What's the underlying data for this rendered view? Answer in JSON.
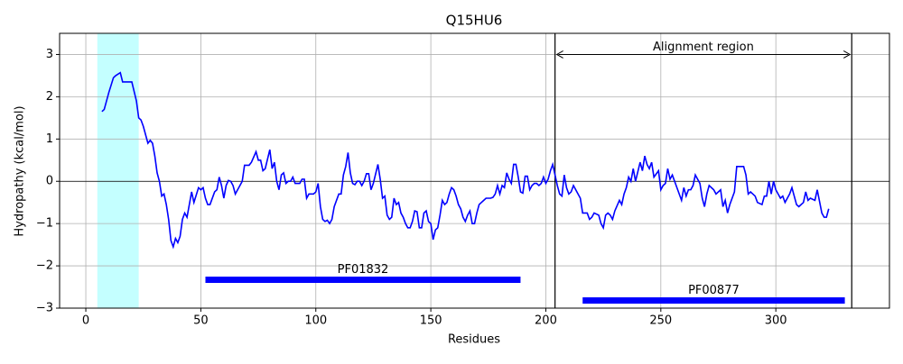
{
  "chart_data": {
    "type": "line",
    "title": "Q15HU6",
    "xlabel": "Residues",
    "ylabel": "Hydropathy (kcal/mol)",
    "x": [
      7,
      8,
      10,
      12,
      13,
      15,
      16,
      18,
      20,
      22,
      23,
      24,
      25,
      26,
      27,
      28,
      29,
      30,
      31,
      32,
      33,
      34,
      35,
      36,
      37,
      38,
      39,
      40,
      41,
      42,
      43,
      44,
      46,
      47,
      49,
      50,
      51,
      52,
      53,
      54,
      56,
      57,
      58,
      59,
      60,
      61,
      62,
      63,
      64,
      65,
      66,
      68,
      69,
      70,
      71,
      72,
      74,
      75,
      76,
      77,
      78,
      80,
      81,
      82,
      83,
      84,
      85,
      86,
      87,
      88,
      89,
      90,
      91,
      93,
      94,
      95,
      96,
      97,
      99,
      100,
      101,
      102,
      103,
      104,
      105,
      106,
      107,
      108,
      110,
      111,
      112,
      113,
      114,
      115,
      116,
      117,
      118,
      119,
      120,
      121,
      122,
      123,
      124,
      125,
      127,
      128,
      129,
      130,
      131,
      132,
      133,
      134,
      135,
      136,
      137,
      138,
      139,
      140,
      141,
      142,
      143,
      144,
      145,
      146,
      147,
      148,
      149,
      150,
      151,
      152,
      153,
      154,
      155,
      156,
      157,
      158,
      159,
      160,
      161,
      162,
      163,
      164,
      165,
      166,
      167,
      168,
      169,
      170,
      171,
      172,
      173,
      174,
      176,
      177,
      178,
      179,
      180,
      181,
      182,
      183,
      184,
      185,
      186,
      187,
      188,
      189,
      190,
      191,
      192,
      193,
      194,
      195,
      196,
      197,
      198,
      199,
      200,
      201,
      202,
      203,
      205,
      206,
      207,
      208,
      209,
      210,
      211,
      212,
      215,
      216,
      217,
      218,
      219,
      220,
      221,
      223,
      224,
      225,
      226,
      227,
      228,
      229,
      230,
      232,
      233,
      234,
      235,
      236,
      237,
      238,
      239,
      241,
      242,
      243,
      244,
      245,
      246,
      247,
      249,
      250,
      251,
      252,
      253,
      254,
      255,
      256,
      259,
      260,
      261,
      262,
      263,
      264,
      265,
      267,
      268,
      269,
      270,
      271,
      272,
      273,
      274,
      276,
      277,
      278,
      279,
      280,
      281,
      282,
      283,
      286,
      287,
      288,
      289,
      291,
      292,
      294,
      295,
      296,
      297,
      298,
      299,
      300,
      302,
      303,
      304,
      305,
      306,
      307,
      308,
      309,
      310,
      312,
      313,
      314,
      315,
      317,
      318,
      320,
      321,
      322,
      323
    ],
    "values": [
      1.65,
      1.7,
      2.1,
      2.45,
      2.5,
      2.57,
      2.35,
      2.35,
      2.35,
      1.9,
      1.5,
      1.45,
      1.3,
      1.1,
      0.9,
      0.97,
      0.9,
      0.6,
      0.2,
      0.0,
      -0.35,
      -0.3,
      -0.55,
      -0.9,
      -1.4,
      -1.55,
      -1.35,
      -1.45,
      -1.3,
      -0.9,
      -0.75,
      -0.85,
      -0.25,
      -0.5,
      -0.15,
      -0.2,
      -0.15,
      -0.4,
      -0.55,
      -0.55,
      -0.25,
      -0.2,
      0.1,
      -0.1,
      -0.4,
      -0.1,
      0.02,
      0.0,
      -0.1,
      -0.3,
      -0.2,
      0.0,
      0.38,
      0.38,
      0.38,
      0.45,
      0.7,
      0.5,
      0.5,
      0.25,
      0.3,
      0.75,
      0.3,
      0.45,
      0.0,
      -0.2,
      0.15,
      0.2,
      -0.05,
      0.0,
      0.0,
      0.1,
      -0.05,
      -0.05,
      0.05,
      0.05,
      -0.4,
      -0.3,
      -0.3,
      -0.25,
      -0.05,
      -0.6,
      -0.9,
      -0.95,
      -0.92,
      -1.0,
      -0.9,
      -0.6,
      -0.3,
      -0.3,
      0.15,
      0.35,
      0.68,
      0.2,
      -0.05,
      -0.08,
      0.0,
      0.0,
      -0.1,
      0.0,
      0.18,
      0.18,
      -0.2,
      -0.05,
      0.4,
      0.05,
      -0.4,
      -0.35,
      -0.8,
      -0.9,
      -0.85,
      -0.4,
      -0.55,
      -0.5,
      -0.75,
      -0.85,
      -1.0,
      -1.1,
      -1.1,
      -0.95,
      -0.7,
      -0.72,
      -1.1,
      -1.1,
      -0.75,
      -0.7,
      -0.95,
      -1.0,
      -1.38,
      -1.15,
      -1.1,
      -0.8,
      -0.45,
      -0.55,
      -0.5,
      -0.3,
      -0.15,
      -0.2,
      -0.35,
      -0.55,
      -0.65,
      -0.85,
      -0.95,
      -0.8,
      -0.7,
      -1.0,
      -1.0,
      -0.75,
      -0.55,
      -0.5,
      -0.45,
      -0.4,
      -0.4,
      -0.38,
      -0.3,
      -0.1,
      -0.3,
      -0.1,
      -0.15,
      0.2,
      0.05,
      -0.05,
      0.4,
      0.4,
      0.1,
      -0.25,
      -0.28,
      0.12,
      0.12,
      -0.2,
      -0.1,
      -0.05,
      -0.05,
      -0.1,
      -0.05,
      0.1,
      -0.05,
      0.05,
      0.25,
      0.4,
      -0.1,
      -0.3,
      -0.35,
      0.15,
      -0.15,
      -0.3,
      -0.25,
      -0.1,
      -0.4,
      -0.75,
      -0.75,
      -0.75,
      -0.9,
      -0.85,
      -0.75,
      -0.8,
      -1.0,
      -1.1,
      -0.8,
      -0.75,
      -0.8,
      -0.9,
      -0.7,
      -0.45,
      -0.55,
      -0.3,
      -0.15,
      0.1,
      0.0,
      0.3,
      0.0,
      0.45,
      0.25,
      0.6,
      0.4,
      0.3,
      0.45,
      0.1,
      0.25,
      -0.2,
      -0.1,
      -0.05,
      0.3,
      0.05,
      0.15,
      0.0,
      -0.45,
      -0.15,
      -0.35,
      -0.2,
      -0.2,
      -0.1,
      0.15,
      -0.05,
      -0.4,
      -0.6,
      -0.3,
      -0.1,
      -0.15,
      -0.2,
      -0.3,
      -0.2,
      -0.6,
      -0.45,
      -0.75,
      -0.55,
      -0.4,
      -0.25,
      0.35,
      0.35,
      0.15,
      -0.3,
      -0.25,
      -0.35,
      -0.5,
      -0.55,
      -0.35,
      -0.35,
      0.0,
      -0.3,
      0.0,
      -0.2,
      -0.4,
      -0.35,
      -0.5,
      -0.4,
      -0.3,
      -0.15,
      -0.35,
      -0.55,
      -0.6,
      -0.5,
      -0.25,
      -0.45,
      -0.4,
      -0.45,
      -0.2,
      -0.75,
      -0.85,
      -0.85,
      -0.65
    ],
    "color": "#0000ff",
    "xlim": [
      -11.4,
      349.4
    ],
    "ylim": [
      -3,
      3.5
    ],
    "xticks": [
      0,
      50,
      100,
      150,
      200,
      250,
      300
    ],
    "yticks": [
      {
        "value": -3,
        "label": "−3"
      },
      {
        "value": -2,
        "label": "−2"
      },
      {
        "value": -1,
        "label": "−1"
      },
      0,
      1,
      2,
      3
    ],
    "grid": true,
    "hline": 0,
    "span": {
      "start": 5,
      "end": 23,
      "color": "#c4ffff"
    },
    "vlines": [
      204,
      333
    ],
    "annotation": {
      "text": "Alignment region",
      "start": 204,
      "end": 333,
      "y": 3
    },
    "domains": [
      {
        "label": "PF01832",
        "start": 52,
        "end": 189,
        "y": -2.33,
        "color": "#0000ff"
      },
      {
        "label": "PF00877",
        "start": 216,
        "end": 330,
        "y": -2.82,
        "color": "#0000ff"
      }
    ]
  }
}
